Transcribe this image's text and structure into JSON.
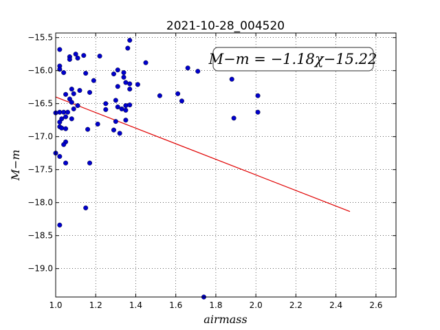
{
  "chart_data": {
    "type": "scatter",
    "title": "2021-10-28_004520",
    "xlabel": "airmass",
    "ylabel": "M−m",
    "xlim": [
      1.0,
      2.7
    ],
    "ylim": [
      -19.43,
      -15.43
    ],
    "x_ticks": [
      1.0,
      1.2,
      1.4,
      1.6,
      1.8,
      2.0,
      2.2,
      2.4,
      2.6
    ],
    "x_tick_labels": [
      "1.0",
      "1.2",
      "1.4",
      "1.6",
      "1.8",
      "2.0",
      "2.2",
      "2.4",
      "2.6"
    ],
    "y_ticks": [
      -15.5,
      -16.0,
      -16.5,
      -17.0,
      -17.5,
      -18.0,
      -18.5,
      -19.0
    ],
    "y_tick_labels": [
      "−15.5",
      "−16.0",
      "−16.5",
      "−17.0",
      "−17.5",
      "−18.0",
      "−18.5",
      "−19.0"
    ],
    "grid": true,
    "annotation": "M−m = −1.18χ−15.22",
    "fit": {
      "slope": -1.18,
      "intercept": -15.22,
      "x_range": [
        1.0,
        2.47
      ],
      "color": "#e00000"
    },
    "point_color": "#0000cc",
    "points": [
      [
        1.02,
        -15.68
      ],
      [
        1.02,
        -15.93
      ],
      [
        1.02,
        -15.98
      ],
      [
        1.04,
        -16.03
      ],
      [
        1.07,
        -15.79
      ],
      [
        1.07,
        -15.83
      ],
      [
        1.1,
        -15.75
      ],
      [
        1.11,
        -15.81
      ],
      [
        1.14,
        -15.77
      ],
      [
        1.22,
        -15.78
      ],
      [
        1.15,
        -16.04
      ],
      [
        1.19,
        -16.15
      ],
      [
        1.08,
        -16.28
      ],
      [
        1.09,
        -16.35
      ],
      [
        1.12,
        -16.3
      ],
      [
        1.17,
        -16.33
      ],
      [
        1.05,
        -16.36
      ],
      [
        1.07,
        -16.43
      ],
      [
        1.08,
        -16.48
      ],
      [
        1.11,
        -16.53
      ],
      [
        1.09,
        -16.58
      ],
      [
        1.02,
        -16.63
      ],
      [
        1.04,
        -16.63
      ],
      [
        1.06,
        -16.63
      ],
      [
        1.0,
        -16.64
      ],
      [
        1.05,
        -16.7
      ],
      [
        1.03,
        -16.73
      ],
      [
        1.08,
        -16.73
      ],
      [
        1.02,
        -16.78
      ],
      [
        1.02,
        -16.85
      ],
      [
        1.03,
        -16.87
      ],
      [
        1.05,
        -16.88
      ],
      [
        1.16,
        -16.89
      ],
      [
        1.21,
        -16.81
      ],
      [
        1.05,
        -17.08
      ],
      [
        1.04,
        -17.12
      ],
      [
        1.0,
        -17.25
      ],
      [
        1.02,
        -17.3
      ],
      [
        1.05,
        -17.4
      ],
      [
        1.17,
        -17.4
      ],
      [
        1.15,
        -18.08
      ],
      [
        1.02,
        -18.34
      ],
      [
        1.29,
        -16.05
      ],
      [
        1.31,
        -15.99
      ],
      [
        1.34,
        -16.03
      ],
      [
        1.34,
        -16.1
      ],
      [
        1.31,
        -16.24
      ],
      [
        1.35,
        -16.18
      ],
      [
        1.37,
        -16.2
      ],
      [
        1.37,
        -16.28
      ],
      [
        1.41,
        -16.21
      ],
      [
        1.36,
        -15.66
      ],
      [
        1.37,
        -15.54
      ],
      [
        1.45,
        -15.88
      ],
      [
        1.25,
        -16.5
      ],
      [
        1.25,
        -16.59
      ],
      [
        1.3,
        -16.45
      ],
      [
        1.31,
        -16.55
      ],
      [
        1.33,
        -16.58
      ],
      [
        1.35,
        -16.53
      ],
      [
        1.37,
        -16.52
      ],
      [
        1.35,
        -16.6
      ],
      [
        1.3,
        -16.77
      ],
      [
        1.35,
        -16.75
      ],
      [
        1.29,
        -16.9
      ],
      [
        1.32,
        -16.95
      ],
      [
        1.52,
        -16.38
      ],
      [
        1.61,
        -16.35
      ],
      [
        1.63,
        -16.46
      ],
      [
        1.66,
        -15.96
      ],
      [
        1.71,
        -16.01
      ],
      [
        1.88,
        -16.13
      ],
      [
        1.89,
        -16.72
      ],
      [
        2.01,
        -16.38
      ],
      [
        2.01,
        -16.63
      ],
      [
        1.74,
        -19.43
      ]
    ]
  }
}
